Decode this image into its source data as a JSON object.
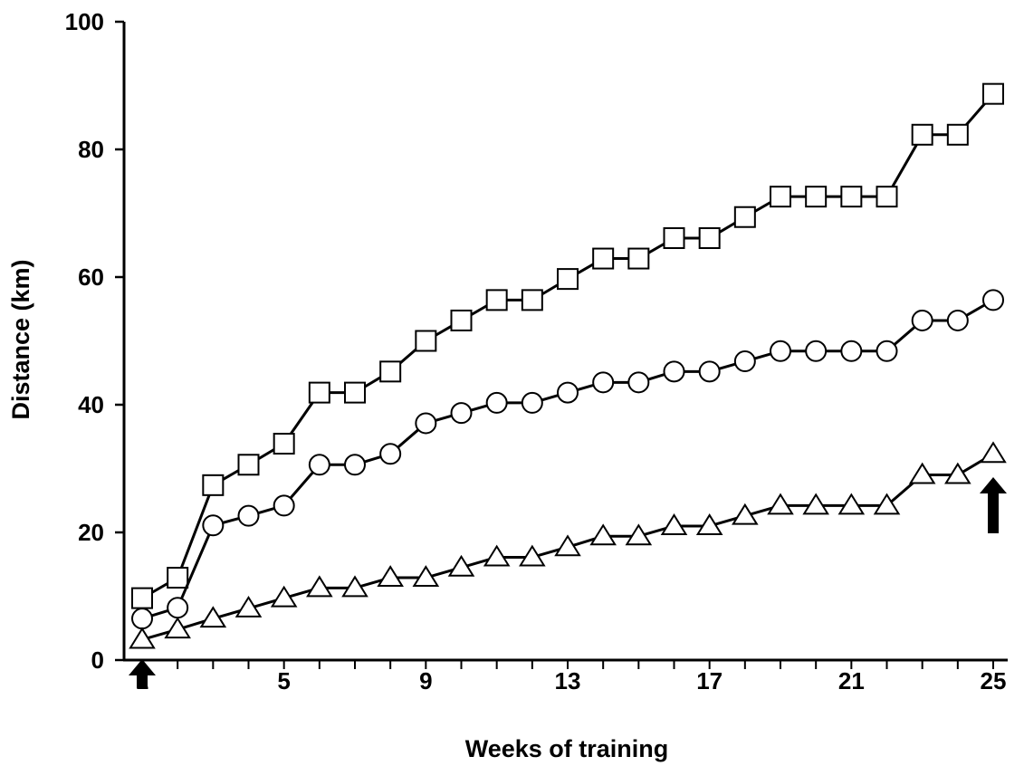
{
  "chart_data": {
    "type": "line",
    "xlabel": "Weeks of training",
    "ylabel": "Distance (km)",
    "xlim": [
      1,
      25
    ],
    "ylim": [
      0,
      100
    ],
    "x_ticks": [
      "1",
      "5",
      "9",
      "13",
      "17",
      "21",
      "25"
    ],
    "y_ticks": [
      "0",
      "20",
      "40",
      "60",
      "80",
      "100"
    ],
    "grid": false,
    "legend": "none",
    "x": [
      1,
      2,
      3,
      4,
      5,
      6,
      7,
      8,
      9,
      10,
      11,
      12,
      13,
      14,
      15,
      16,
      17,
      18,
      19,
      20,
      21,
      22,
      23,
      24,
      25
    ],
    "series": [
      {
        "marker": "square",
        "values": [
          9.7,
          12.9,
          27.4,
          30.6,
          33.9,
          41.9,
          41.9,
          45.2,
          50.0,
          53.2,
          56.4,
          56.4,
          59.7,
          62.9,
          62.9,
          66.1,
          66.1,
          69.4,
          72.6,
          72.6,
          72.6,
          72.6,
          82.3,
          82.3,
          88.7
        ]
      },
      {
        "marker": "circle",
        "values": [
          6.5,
          8.2,
          21.1,
          22.6,
          24.2,
          30.6,
          30.6,
          32.3,
          37.1,
          38.7,
          40.3,
          40.3,
          41.9,
          43.5,
          43.5,
          45.2,
          45.2,
          46.8,
          48.4,
          48.4,
          48.4,
          48.4,
          53.2,
          53.2,
          56.4
        ]
      },
      {
        "marker": "triangle",
        "values": [
          3.2,
          4.8,
          6.5,
          8.1,
          9.7,
          11.3,
          11.3,
          12.9,
          12.9,
          14.5,
          16.1,
          16.1,
          17.7,
          19.4,
          19.4,
          21.0,
          21.0,
          22.6,
          24.2,
          24.2,
          24.2,
          24.2,
          29.0,
          29.0,
          32.3
        ]
      }
    ],
    "annotations": [
      {
        "type": "arrow",
        "x": 1,
        "direction": "up"
      },
      {
        "type": "arrow",
        "x": 25,
        "direction": "up"
      }
    ]
  }
}
